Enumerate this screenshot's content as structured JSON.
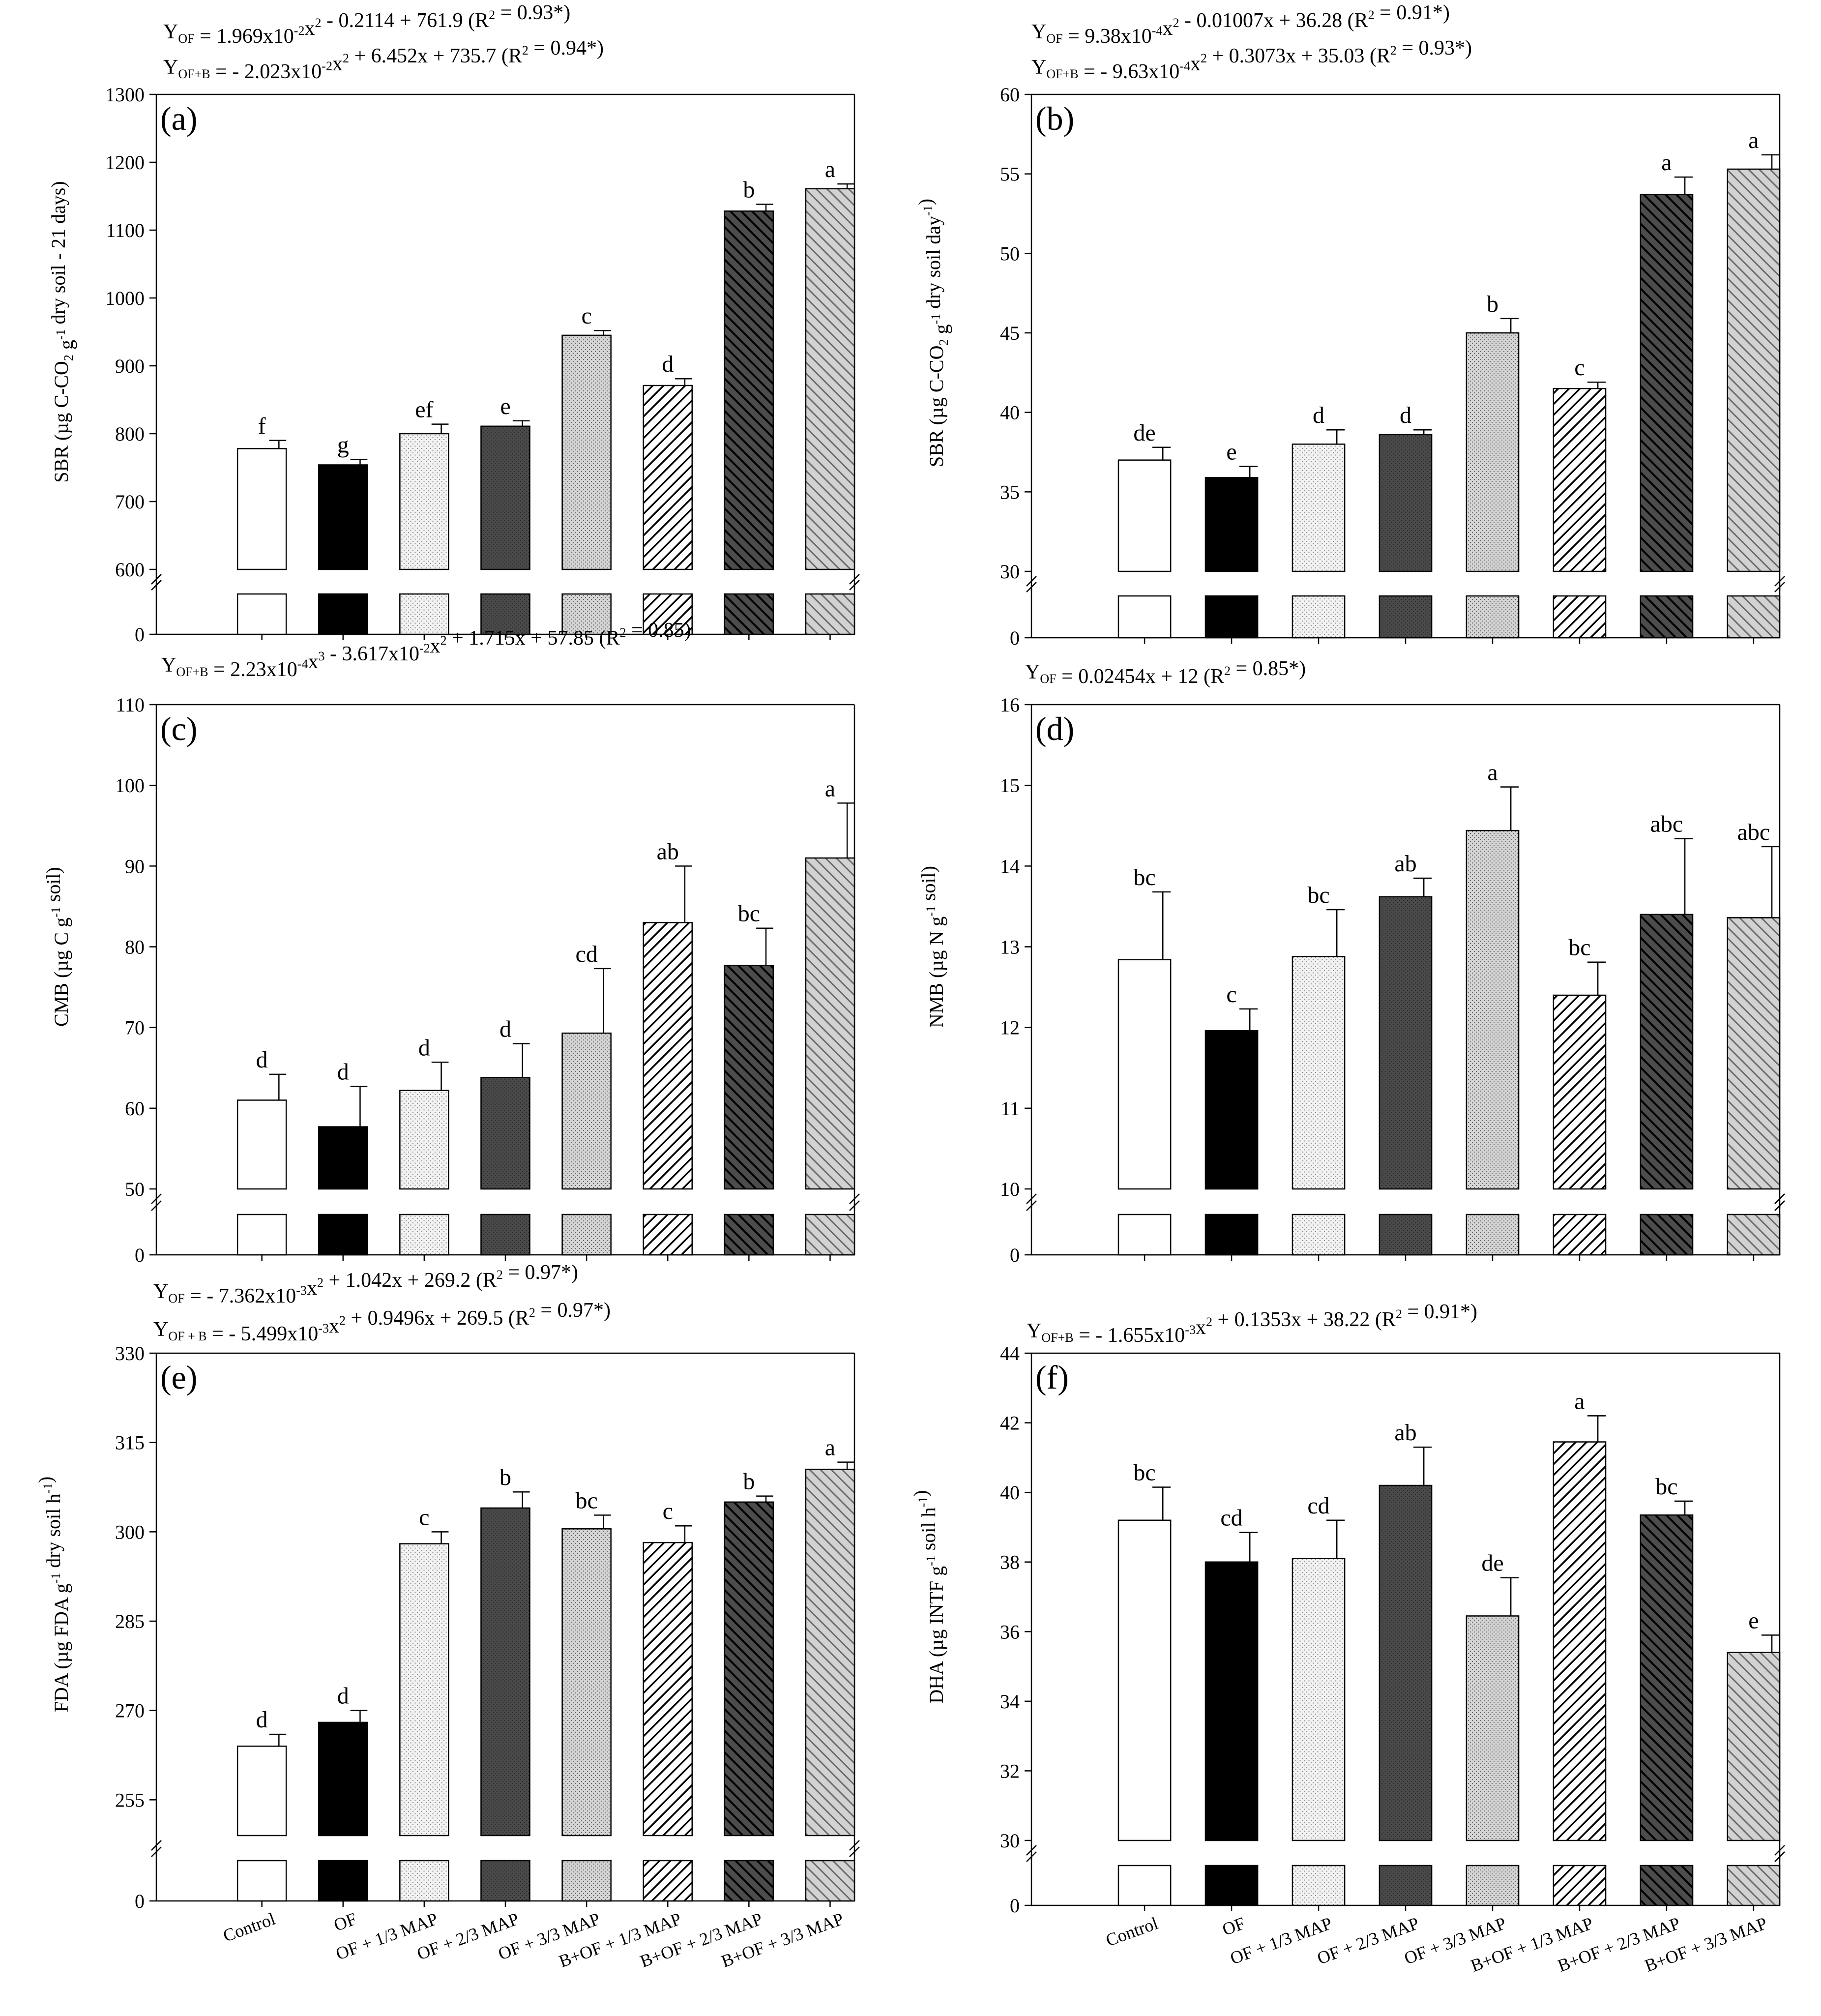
{
  "figure": {
    "categories": [
      "Control",
      "OF",
      "OF + 1/3 MAP",
      "OF + 2/3 MAP",
      "OF + 3/3 MAP",
      "B+OF + 1/3 MAP",
      "B+OF + 2/3 MAP",
      "B+OF + 3/3 MAP"
    ],
    "fills": [
      "white",
      "black",
      "dots-light",
      "dots-dark",
      "dots-medium",
      "hatch-light",
      "hatch-dark",
      "hatch-medium"
    ]
  },
  "chart_data": [
    {
      "type": "bar",
      "panel": "(a)",
      "ylabel": "SBR (µg C-CO2 g-1 dry soil - 21 days)",
      "ylabel_parts": [
        "SBR (µg C-CO",
        "2",
        " g",
        "-1",
        " dry soil - 21 days)"
      ],
      "ylim": [
        600,
        1300
      ],
      "yticks": [
        600,
        700,
        800,
        900,
        1000,
        1100,
        1200,
        1300
      ],
      "broken_axis_zero": "0",
      "values": [
        778,
        754,
        800,
        811,
        945,
        871,
        1128,
        1161
      ],
      "errors": [
        12,
        8,
        14,
        8,
        7,
        10,
        10,
        7
      ],
      "letters": [
        "f",
        "g",
        "ef",
        "e",
        "c",
        "d",
        "b",
        "a"
      ],
      "equations": [
        {
          "parts": [
            [
              "Y",
              ""
            ],
            [
              "OF",
              "sub"
            ],
            [
              " = 1.969x10",
              ""
            ],
            [
              "-2",
              "sup"
            ],
            [
              "x",
              ""
            ],
            [
              "2",
              "sup"
            ],
            [
              " - 0.2114 + 761.9 (R",
              ""
            ],
            [
              "2",
              "sup"
            ],
            [
              " = 0.93*)",
              ""
            ]
          ]
        },
        {
          "parts": [
            [
              "Y",
              ""
            ],
            [
              "OF+B",
              "sub"
            ],
            [
              " = - 2.023x10",
              ""
            ],
            [
              "-2",
              "sup"
            ],
            [
              "x",
              ""
            ],
            [
              "2",
              "sup"
            ],
            [
              " + 6.452x + 735.7 (R",
              ""
            ],
            [
              "2",
              "sup"
            ],
            [
              " = 0.94*)",
              ""
            ]
          ]
        }
      ]
    },
    {
      "type": "bar",
      "panel": "(b)",
      "ylabel": "SBR (µg C-CO2 g-1 dry soil day-1)",
      "ylabel_parts": [
        "SBR (µg C-CO",
        "2",
        " g",
        "-1",
        " dry soil day",
        "-1",
        ")"
      ],
      "ylim": [
        30,
        60
      ],
      "yticks": [
        30,
        35,
        40,
        45,
        50,
        55,
        60
      ],
      "broken_axis_zero": "0",
      "values": [
        37.0,
        35.9,
        38.0,
        38.6,
        45.0,
        41.5,
        53.7,
        55.3
      ],
      "errors": [
        0.8,
        0.7,
        0.9,
        0.3,
        0.9,
        0.4,
        1.1,
        0.9
      ],
      "letters": [
        "de",
        "e",
        "d",
        "d",
        "b",
        "c",
        "a",
        "a"
      ],
      "equations": [
        {
          "parts": [
            [
              "Y",
              ""
            ],
            [
              "OF",
              "sub"
            ],
            [
              " = 9.38x10",
              ""
            ],
            [
              "-4",
              "sup"
            ],
            [
              "x",
              ""
            ],
            [
              "2",
              "sup"
            ],
            [
              " - 0.01007x + 36.28 (R",
              ""
            ],
            [
              "2",
              "sup"
            ],
            [
              " = 0.91*)",
              ""
            ]
          ]
        },
        {
          "parts": [
            [
              "Y",
              ""
            ],
            [
              "OF+B",
              "sub"
            ],
            [
              " = - 9.63x10",
              ""
            ],
            [
              "-4",
              "sup"
            ],
            [
              "x",
              ""
            ],
            [
              "2",
              "sup"
            ],
            [
              " + 0.3073x + 35.03 (R",
              ""
            ],
            [
              "2",
              "sup"
            ],
            [
              " = 0.93*)",
              ""
            ]
          ]
        }
      ]
    },
    {
      "type": "bar",
      "panel": "(c)",
      "ylabel": "CMB (µg C g-1 soil)",
      "ylabel_parts": [
        "CMB (µg C g",
        "-1",
        " soil)"
      ],
      "ylim": [
        50,
        110
      ],
      "yticks": [
        50,
        60,
        70,
        80,
        90,
        100,
        110
      ],
      "broken_axis_zero": "0",
      "values": [
        61.0,
        57.7,
        62.2,
        63.8,
        69.3,
        83.0,
        77.7,
        91.0
      ],
      "errors": [
        3.2,
        5.0,
        3.5,
        4.2,
        8.0,
        7.0,
        4.6,
        6.8
      ],
      "letters": [
        "d",
        "d",
        "d",
        "d",
        "cd",
        "ab",
        "bc",
        "a"
      ],
      "equations": [
        {
          "parts": [
            [
              "Y",
              ""
            ],
            [
              "OF+B",
              "sub"
            ],
            [
              " = 2.23x10",
              ""
            ],
            [
              "-4",
              "sup"
            ],
            [
              "x",
              ""
            ],
            [
              "3",
              "sup"
            ],
            [
              " - 3.617x10",
              ""
            ],
            [
              "-2",
              "sup"
            ],
            [
              "x",
              ""
            ],
            [
              "2",
              "sup"
            ],
            [
              " + 1.715x + 57.85 (R",
              ""
            ],
            [
              "2",
              "sup"
            ],
            [
              " = 0.85)",
              ""
            ]
          ]
        }
      ]
    },
    {
      "type": "bar",
      "panel": "(d)",
      "ylabel": "NMB (µg N g-1 soil)",
      "ylabel_parts": [
        "NMB (µg N g",
        "-1",
        " soil)"
      ],
      "ylim": [
        10,
        16
      ],
      "yticks": [
        10,
        11,
        12,
        13,
        14,
        15,
        16
      ],
      "broken_axis_zero": "0",
      "values": [
        12.84,
        11.96,
        12.88,
        13.62,
        14.44,
        12.4,
        13.4,
        13.36
      ],
      "errors": [
        0.84,
        0.27,
        0.58,
        0.23,
        0.54,
        0.41,
        0.94,
        0.88
      ],
      "letters": [
        "bc",
        "c",
        "bc",
        "ab",
        "a",
        "bc",
        "abc",
        "abc"
      ],
      "equations": [
        {
          "parts": [
            [
              "Y",
              ""
            ],
            [
              "OF",
              "sub"
            ],
            [
              " = 0.02454x + 12 (R",
              ""
            ],
            [
              "2",
              "sup"
            ],
            [
              " = 0.85*)",
              ""
            ]
          ]
        }
      ]
    },
    {
      "type": "bar",
      "panel": "(e)",
      "ylabel": "FDA (µg FDA g-1 dry soil h-1)",
      "ylabel_parts": [
        "FDA (µg FDA g",
        "-1",
        " dry soil h",
        "-1",
        ")"
      ],
      "ylim": [
        249,
        330
      ],
      "yticks": [
        255,
        270,
        285,
        300,
        315,
        330
      ],
      "broken_axis_zero": "0",
      "values": [
        264,
        268,
        298,
        304,
        300.5,
        298.2,
        305,
        310.5
      ],
      "errors": [
        2.0,
        2.0,
        2.0,
        2.7,
        2.3,
        2.8,
        1.0,
        1.2
      ],
      "letters": [
        "d",
        "d",
        "c",
        "b",
        "bc",
        "c",
        "b",
        "a"
      ],
      "equations": [
        {
          "parts": [
            [
              "Y",
              ""
            ],
            [
              "OF",
              "sub"
            ],
            [
              " = - 7.362x10",
              ""
            ],
            [
              "-3",
              "sup"
            ],
            [
              "x",
              ""
            ],
            [
              "2",
              "sup"
            ],
            [
              " + 1.042x + 269.2 (R",
              ""
            ],
            [
              "2",
              "sup"
            ],
            [
              " = 0.97*)",
              ""
            ]
          ]
        },
        {
          "parts": [
            [
              "Y",
              ""
            ],
            [
              "OF + B",
              "sub"
            ],
            [
              " = - 5.499x10",
              ""
            ],
            [
              "-3",
              "sup"
            ],
            [
              "x",
              ""
            ],
            [
              "2",
              "sup"
            ],
            [
              " + 0.9496x + 269.5 (R",
              ""
            ],
            [
              "2",
              "sup"
            ],
            [
              " = 0.97*)",
              ""
            ]
          ]
        }
      ]
    },
    {
      "type": "bar",
      "panel": "(f)",
      "ylabel": "DHA (µg INTF g-1 soil h-1)",
      "ylabel_parts": [
        "DHA (µg INTF g",
        "-1",
        " soil h",
        "-1",
        ")"
      ],
      "ylim": [
        30,
        44
      ],
      "yticks": [
        30,
        32,
        34,
        36,
        38,
        40,
        42,
        44
      ],
      "broken_axis_zero": "0",
      "values": [
        39.2,
        38.0,
        38.1,
        40.2,
        36.45,
        41.45,
        39.35,
        35.4
      ],
      "errors": [
        0.95,
        0.85,
        1.1,
        1.1,
        1.1,
        0.75,
        0.4,
        0.5
      ],
      "letters": [
        "bc",
        "cd",
        "cd",
        "ab",
        "de",
        "a",
        "bc",
        "e"
      ],
      "equations": [
        {
          "parts": [
            [
              "Y",
              ""
            ],
            [
              "OF+B",
              "sub"
            ],
            [
              " = - 1.655x10",
              ""
            ],
            [
              "-3",
              "sup"
            ],
            [
              "x",
              ""
            ],
            [
              "2",
              "sup"
            ],
            [
              " + 0.1353x + 38.22 (R",
              ""
            ],
            [
              "2",
              "sup"
            ],
            [
              " = 0.91*)",
              ""
            ]
          ]
        }
      ]
    }
  ]
}
